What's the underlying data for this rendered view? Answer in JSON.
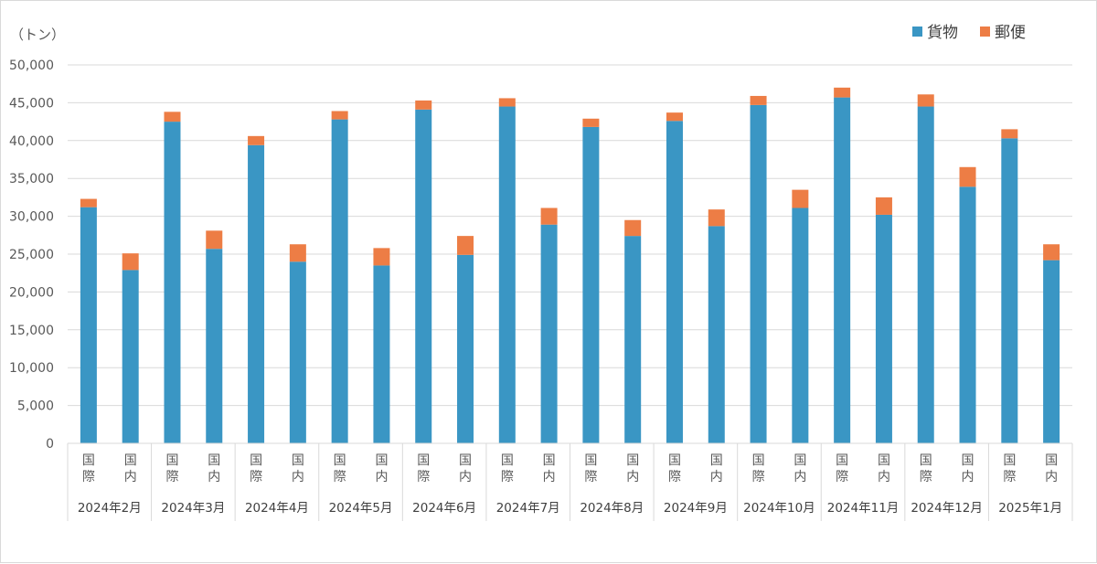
{
  "chart_data": {
    "type": "bar",
    "stacked": true,
    "unit_label": "（トン）",
    "ylim": [
      0,
      50000
    ],
    "yticks": [
      "0",
      "5,000",
      "10,000",
      "15,000",
      "20,000",
      "25,000",
      "30,000",
      "35,000",
      "40,000",
      "45,000",
      "50,000"
    ],
    "yticks_values": [
      0,
      5000,
      10000,
      15000,
      20000,
      25000,
      30000,
      35000,
      40000,
      45000,
      50000
    ],
    "grid": true,
    "legend_position": "top-right",
    "months": [
      "2024年2月",
      "2024年3月",
      "2024年4月",
      "2024年5月",
      "2024年6月",
      "2024年7月",
      "2024年8月",
      "2024年9月",
      "2024年10月",
      "2024年11月",
      "2024年12月",
      "2025年1月"
    ],
    "sub_categories": [
      "国際",
      "国内"
    ],
    "series": [
      {
        "name": "貨物",
        "color": "#3a96c4",
        "values": [
          31200,
          22900,
          42500,
          25700,
          39400,
          24000,
          42800,
          23500,
          44100,
          24900,
          44500,
          28900,
          41800,
          27400,
          42600,
          28700,
          44700,
          31100,
          45700,
          30200,
          44500,
          33900,
          40300,
          24200
        ]
      },
      {
        "name": "郵便",
        "color": "#ed7d45",
        "values": [
          1100,
          2200,
          1300,
          2400,
          1200,
          2300,
          1100,
          2300,
          1200,
          2500,
          1100,
          2200,
          1100,
          2100,
          1100,
          2200,
          1200,
          2400,
          1300,
          2300,
          1600,
          2600,
          1200,
          2100
        ]
      }
    ]
  }
}
